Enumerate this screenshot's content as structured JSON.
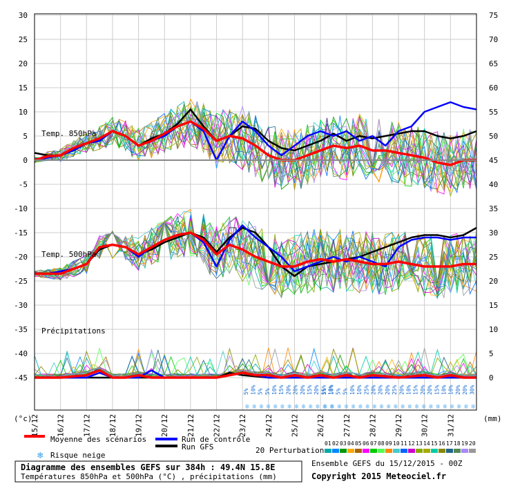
{
  "chart_data": {
    "type": "line",
    "title": "Diagramme des ensembles GEFS sur 384h : 49.4N 15.8E",
    "subtitle": "Températures 850hPa et 500hPa (°C) , précipitations (mm)",
    "left_unit": "(°c)",
    "right_unit": "(mm)",
    "left_ticks": [
      30,
      25,
      20,
      15,
      10,
      5,
      0,
      -5,
      -10,
      -15,
      -20,
      -25,
      -30,
      -35,
      -40,
      -45
    ],
    "right_ticks": [
      75,
      70,
      65,
      60,
      55,
      50,
      45,
      40,
      35,
      30,
      25,
      20,
      15,
      10,
      5,
      0
    ],
    "x_labels": [
      "15/12",
      "16/12",
      "17/12",
      "18/12",
      "19/12",
      "20/12",
      "21/12",
      "22/12",
      "23/12",
      "24/12",
      "25/12",
      "26/12",
      "27/12",
      "28/12",
      "29/12",
      "30/12",
      "31/12"
    ],
    "panel_labels": {
      "t850": "Temp. 850hPa",
      "t500": "Temp. 500hPa",
      "precip": "Précipitations"
    },
    "ylim": [
      -45,
      30
    ],
    "snow_risk": [
      {
        "day": 8.0,
        "pct": [
          "5%",
          "10%",
          "5%",
          "5%",
          "10%",
          "15%",
          "20%",
          "20%",
          "20%",
          "15%",
          "20%",
          "15%",
          "10%"
        ]
      },
      {
        "day": 11.0,
        "pct": [
          "5%",
          "10%",
          "5%",
          "5%",
          "10%",
          "10%",
          "25%",
          "20%",
          "20%",
          "20%",
          "25%",
          "20%",
          "10%",
          "15%",
          "20%",
          "20%",
          "15%",
          "10%",
          "10%",
          "20%",
          "20%",
          "30%"
        ]
      }
    ],
    "series": [
      {
        "name": "Moyenne des scénarios",
        "color": "#ff0000",
        "t850": [
          [
            0,
            0
          ],
          [
            0.5,
            0.8
          ],
          [
            1,
            1
          ],
          [
            1.5,
            2.5
          ],
          [
            2,
            3.5
          ],
          [
            2.5,
            4.5
          ],
          [
            3,
            6
          ],
          [
            3.5,
            5
          ],
          [
            4,
            3
          ],
          [
            4.5,
            4
          ],
          [
            5,
            5.5
          ],
          [
            5.5,
            7
          ],
          [
            6,
            8
          ],
          [
            6.5,
            6.5
          ],
          [
            7,
            4
          ],
          [
            7.5,
            5
          ],
          [
            8,
            4.5
          ],
          [
            8.5,
            3
          ],
          [
            9,
            1
          ],
          [
            9.5,
            0
          ],
          [
            10,
            0
          ],
          [
            10.5,
            1
          ],
          [
            11,
            2
          ],
          [
            11.5,
            3
          ],
          [
            12,
            2.5
          ],
          [
            12.5,
            3
          ],
          [
            13,
            2
          ],
          [
            13.5,
            2
          ],
          [
            14,
            1.5
          ],
          [
            14.5,
            1
          ],
          [
            15,
            0.5
          ],
          [
            15.5,
            -0.5
          ],
          [
            16,
            -1
          ],
          [
            16.5,
            0
          ],
          [
            17,
            0
          ]
        ],
        "t500": [
          [
            0,
            -23.5
          ],
          [
            0.5,
            -23.5
          ],
          [
            1,
            -23.5
          ],
          [
            1.5,
            -22.5
          ],
          [
            2,
            -21.5
          ],
          [
            2.5,
            -18
          ],
          [
            3,
            -17.5
          ],
          [
            3.5,
            -18
          ],
          [
            4,
            -19.5
          ],
          [
            4.5,
            -18
          ],
          [
            5,
            -16.5
          ],
          [
            5.5,
            -15.5
          ],
          [
            6,
            -15
          ],
          [
            6.5,
            -16.5
          ],
          [
            7,
            -19.5
          ],
          [
            7.5,
            -17.5
          ],
          [
            8,
            -18.5
          ],
          [
            8.5,
            -20
          ],
          [
            9,
            -21
          ],
          [
            9.5,
            -22
          ],
          [
            10,
            -22
          ],
          [
            10.5,
            -21
          ],
          [
            11,
            -20.5
          ],
          [
            11.5,
            -21
          ],
          [
            12,
            -20.5
          ],
          [
            12.5,
            -21
          ],
          [
            13,
            -21.5
          ],
          [
            13.5,
            -21.5
          ],
          [
            14,
            -21
          ],
          [
            14.5,
            -21.5
          ],
          [
            15,
            -22
          ],
          [
            15.5,
            -22
          ],
          [
            16,
            -22
          ],
          [
            16.5,
            -21.5
          ],
          [
            17,
            -21.5
          ]
        ],
        "precip": [
          [
            0,
            0
          ],
          [
            1,
            0
          ],
          [
            2,
            0.5
          ],
          [
            2.5,
            1.5
          ],
          [
            3,
            0
          ],
          [
            3.5,
            0
          ],
          [
            4,
            0.5
          ],
          [
            4.5,
            0
          ],
          [
            5,
            0
          ],
          [
            6,
            0
          ],
          [
            7,
            0
          ],
          [
            7.5,
            0.5
          ],
          [
            8,
            1
          ],
          [
            8.5,
            0.5
          ],
          [
            9,
            0.5
          ],
          [
            9.5,
            0
          ],
          [
            10,
            0.5
          ],
          [
            10.5,
            0
          ],
          [
            11,
            0.5
          ],
          [
            11.5,
            0
          ],
          [
            12,
            0.5
          ],
          [
            12.5,
            0
          ],
          [
            13,
            0.5
          ],
          [
            14,
            0
          ],
          [
            15,
            0.5
          ],
          [
            15.5,
            0
          ],
          [
            16,
            0.5
          ],
          [
            16.5,
            0
          ],
          [
            17,
            0
          ]
        ]
      },
      {
        "name": "Run de contrôle",
        "color": "#0000ff",
        "t850": [
          [
            0,
            0
          ],
          [
            0.5,
            0.5
          ],
          [
            1,
            1
          ],
          [
            1.5,
            2
          ],
          [
            2,
            3.5
          ],
          [
            2.5,
            4
          ],
          [
            3,
            6
          ],
          [
            3.5,
            5
          ],
          [
            4,
            3
          ],
          [
            4.5,
            4
          ],
          [
            5,
            5
          ],
          [
            5.5,
            7
          ],
          [
            6,
            8
          ],
          [
            6.5,
            6
          ],
          [
            7,
            0
          ],
          [
            7.5,
            5
          ],
          [
            8,
            8
          ],
          [
            8.5,
            6
          ],
          [
            9,
            3
          ],
          [
            9.5,
            1
          ],
          [
            10,
            3
          ],
          [
            10.5,
            5
          ],
          [
            11,
            6
          ],
          [
            11.5,
            5
          ],
          [
            12,
            6
          ],
          [
            12.5,
            4
          ],
          [
            13,
            5
          ],
          [
            13.5,
            3
          ],
          [
            14,
            6
          ],
          [
            14.5,
            7
          ],
          [
            15,
            10
          ],
          [
            15.5,
            11
          ],
          [
            16,
            12
          ],
          [
            16.5,
            11
          ],
          [
            17,
            10.5
          ]
        ],
        "t500": [
          [
            0,
            -23.5
          ],
          [
            0.5,
            -23.5
          ],
          [
            1,
            -23
          ],
          [
            1.5,
            -22.5
          ],
          [
            2,
            -21.5
          ],
          [
            2.5,
            -18
          ],
          [
            3,
            -17.5
          ],
          [
            3.5,
            -18
          ],
          [
            4,
            -20
          ],
          [
            4.5,
            -18
          ],
          [
            5,
            -16.5
          ],
          [
            5.5,
            -15.5
          ],
          [
            6,
            -15
          ],
          [
            6.5,
            -17
          ],
          [
            7,
            -22
          ],
          [
            7.5,
            -16.5
          ],
          [
            8,
            -13.5
          ],
          [
            8.5,
            -16
          ],
          [
            9,
            -18
          ],
          [
            9.5,
            -20
          ],
          [
            10,
            -23
          ],
          [
            10.5,
            -22
          ],
          [
            11,
            -21
          ],
          [
            11.5,
            -20
          ],
          [
            12,
            -21
          ],
          [
            12.5,
            -20
          ],
          [
            13,
            -21
          ],
          [
            13.5,
            -22
          ],
          [
            14,
            -18
          ],
          [
            14.5,
            -16.5
          ],
          [
            15,
            -16
          ],
          [
            15.5,
            -16
          ],
          [
            16,
            -16.5
          ],
          [
            16.5,
            -16
          ],
          [
            17,
            -16
          ]
        ],
        "precip": [
          [
            0,
            0
          ],
          [
            2,
            0
          ],
          [
            2.5,
            1
          ],
          [
            3,
            0
          ],
          [
            4,
            0
          ],
          [
            4.5,
            1.5
          ],
          [
            5,
            0
          ],
          [
            7,
            0
          ],
          [
            7.5,
            0.5
          ],
          [
            8,
            1
          ],
          [
            9,
            0
          ],
          [
            10,
            0
          ],
          [
            11,
            0
          ],
          [
            12,
            0
          ],
          [
            13,
            0
          ],
          [
            14,
            0
          ],
          [
            15,
            0
          ],
          [
            16,
            0
          ],
          [
            17,
            0
          ]
        ]
      },
      {
        "name": "Run GFS",
        "color": "#000000",
        "t850": [
          [
            0,
            1.5
          ],
          [
            0.5,
            1
          ],
          [
            1,
            1
          ],
          [
            1.5,
            2
          ],
          [
            2,
            3.5
          ],
          [
            2.5,
            4
          ],
          [
            3,
            6
          ],
          [
            3.5,
            5
          ],
          [
            4,
            3
          ],
          [
            4.5,
            4.5
          ],
          [
            5,
            5.5
          ],
          [
            5.5,
            7.5
          ],
          [
            6,
            10.5
          ],
          [
            6.5,
            7
          ],
          [
            7,
            4
          ],
          [
            7.5,
            5
          ],
          [
            8,
            7
          ],
          [
            8.5,
            6.5
          ],
          [
            9,
            4
          ],
          [
            9.5,
            2.5
          ],
          [
            10,
            2
          ],
          [
            10.5,
            3
          ],
          [
            11,
            4
          ],
          [
            11.5,
            5.5
          ],
          [
            12,
            4
          ],
          [
            12.5,
            5
          ],
          [
            13,
            4.5
          ],
          [
            13.5,
            5
          ],
          [
            14,
            5.5
          ],
          [
            14.5,
            6
          ],
          [
            15,
            6
          ],
          [
            15.5,
            5
          ],
          [
            16,
            4.5
          ],
          [
            16.5,
            5
          ],
          [
            17,
            6
          ]
        ],
        "t500": [
          [
            0,
            -23.5
          ],
          [
            0.5,
            -23.5
          ],
          [
            1,
            -23.5
          ],
          [
            1.5,
            -22.5
          ],
          [
            2,
            -21.5
          ],
          [
            2.5,
            -18.5
          ],
          [
            3,
            -17.5
          ],
          [
            3.5,
            -18
          ],
          [
            4,
            -19.5
          ],
          [
            4.5,
            -18.5
          ],
          [
            5,
            -17
          ],
          [
            5.5,
            -16
          ],
          [
            6,
            -15
          ],
          [
            6.5,
            -16
          ],
          [
            7,
            -19
          ],
          [
            7.5,
            -16
          ],
          [
            8,
            -14
          ],
          [
            8.5,
            -15
          ],
          [
            9,
            -18
          ],
          [
            9.5,
            -22
          ],
          [
            10,
            -24
          ],
          [
            10.5,
            -22
          ],
          [
            11,
            -21.5
          ],
          [
            11.5,
            -21
          ],
          [
            12,
            -20.5
          ],
          [
            12.5,
            -20
          ],
          [
            13,
            -19
          ],
          [
            13.5,
            -18
          ],
          [
            14,
            -17
          ],
          [
            14.5,
            -16
          ],
          [
            15,
            -15.5
          ],
          [
            15.5,
            -15.5
          ],
          [
            16,
            -16
          ],
          [
            16.5,
            -15.5
          ],
          [
            17,
            -14
          ]
        ],
        "precip": [
          [
            0,
            0
          ],
          [
            2,
            0
          ],
          [
            3,
            0
          ],
          [
            4,
            0
          ],
          [
            5,
            0
          ],
          [
            6,
            0
          ],
          [
            7,
            0
          ],
          [
            7.5,
            1
          ],
          [
            8,
            0.5
          ],
          [
            9,
            0
          ],
          [
            10,
            0
          ],
          [
            11,
            0
          ],
          [
            12,
            0
          ],
          [
            13,
            0
          ],
          [
            14,
            0
          ],
          [
            15,
            0
          ],
          [
            16,
            0
          ],
          [
            17,
            0
          ]
        ]
      }
    ],
    "legend": {
      "mean": "Moyenne des scénarios",
      "control": "Run de contrôle",
      "gfs": "Run GFS",
      "perturbations": "20 Perturbations",
      "snow_risk": "Risque neige"
    },
    "perturbations": [
      "01",
      "02",
      "03",
      "04",
      "05",
      "06",
      "07",
      "08",
      "09",
      "10",
      "11",
      "12",
      "13",
      "14",
      "15",
      "16",
      "17",
      "18",
      "19",
      "20"
    ],
    "pert_colors": [
      "#00aaaa",
      "#0088ff",
      "#009900",
      "#ffaa00",
      "#aa6600",
      "#ff00ff",
      "#00cc00",
      "#55ff55",
      "#ff8800",
      "#44cccc",
      "#0066ff",
      "#cc00cc",
      "#88aa00",
      "#aaaa00",
      "#00ccaa",
      "#888800",
      "#226688",
      "#558855",
      "#aa88ff",
      "#999999"
    ],
    "run_info": "Ensemble GEFS du 15/12/2015 - 00Z",
    "copyright": "Copyright 2015 Meteociel.fr"
  }
}
